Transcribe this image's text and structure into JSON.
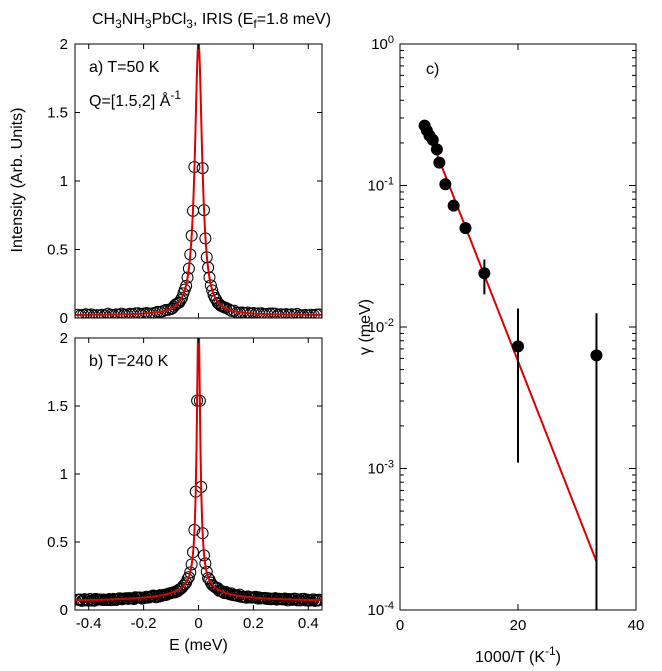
{
  "figure": {
    "title_main": "CH",
    "title_parts": [
      "CH",
      "3",
      "NH",
      "3",
      "PbCl",
      "3",
      ", IRIS (E",
      "f",
      "=1.8 meV)"
    ]
  },
  "chart_data": [
    {
      "id": "a",
      "type": "scatter",
      "panel_label": "a) T=50 K",
      "q_label_parts": [
        "Q=[1.5,2] Å",
        "-1"
      ],
      "xlim": [
        -0.45,
        0.45
      ],
      "ylim": [
        0,
        2
      ],
      "xticks": [],
      "yticks": [
        0,
        0.5,
        1,
        1.5,
        2
      ],
      "ytick_labels": [
        "0",
        "0.5",
        "1",
        "1.5",
        "2"
      ],
      "fit_color": "#dd0000",
      "marker_color": "#000000",
      "lorentz": {
        "amplitude": 1.99,
        "gamma": 0.016,
        "background": 0.02
      },
      "points_x": [
        -0.44,
        -0.43,
        -0.42,
        -0.41,
        -0.4,
        -0.39,
        -0.38,
        -0.37,
        -0.36,
        -0.35,
        -0.34,
        -0.33,
        -0.32,
        -0.31,
        -0.3,
        -0.29,
        -0.28,
        -0.27,
        -0.26,
        -0.25,
        -0.24,
        -0.23,
        -0.22,
        -0.21,
        -0.2,
        -0.19,
        -0.18,
        -0.17,
        -0.16,
        -0.15,
        -0.14,
        -0.13,
        -0.12,
        -0.11,
        -0.1,
        -0.095,
        -0.09,
        -0.085,
        -0.08,
        -0.075,
        -0.07,
        -0.065,
        -0.06,
        -0.055,
        -0.05,
        -0.045,
        -0.04,
        -0.035,
        -0.03,
        -0.025,
        -0.02,
        -0.015,
        -0.01,
        0.01,
        0.015,
        0.02,
        0.025,
        0.03,
        0.035,
        0.04,
        0.045,
        0.05,
        0.055,
        0.06,
        0.065,
        0.07,
        0.075,
        0.08,
        0.085,
        0.09,
        0.095,
        0.1,
        0.11,
        0.12,
        0.13,
        0.14,
        0.15,
        0.16,
        0.17,
        0.18,
        0.19,
        0.2,
        0.21,
        0.22,
        0.23,
        0.24,
        0.25,
        0.26,
        0.27,
        0.28,
        0.29,
        0.3,
        0.31,
        0.32,
        0.33,
        0.34,
        0.35,
        0.36,
        0.37,
        0.38,
        0.39,
        0.4,
        0.41,
        0.42,
        0.43,
        0.44
      ]
    },
    {
      "id": "b",
      "type": "scatter",
      "panel_label": "b) T=240 K",
      "xlabel": "E (meV)",
      "xlim": [
        -0.45,
        0.45
      ],
      "ylim": [
        0,
        2
      ],
      "xticks": [
        -0.4,
        -0.2,
        0,
        0.2,
        0.4
      ],
      "xtick_labels": [
        "-0.4",
        "-0.2",
        "0",
        "0.2",
        "0.4"
      ],
      "yticks": [
        0,
        0.5,
        1,
        1.5,
        2
      ],
      "ytick_labels": [
        "0",
        "0.5",
        "1",
        "1.5",
        "2"
      ],
      "fit_color": "#dd0000",
      "marker_color": "#000000",
      "lorentz": {
        "amplitude": 1.92,
        "gamma": 0.0075,
        "background": 0.0
      },
      "lorentz2": {
        "amplitude": 0.3,
        "gamma": 0.17
      },
      "points_x": [
        -0.44,
        -0.435,
        -0.43,
        -0.425,
        -0.42,
        -0.415,
        -0.41,
        -0.405,
        -0.4,
        -0.395,
        -0.39,
        -0.385,
        -0.38,
        -0.375,
        -0.37,
        -0.365,
        -0.36,
        -0.355,
        -0.35,
        -0.345,
        -0.34,
        -0.335,
        -0.33,
        -0.325,
        -0.32,
        -0.315,
        -0.31,
        -0.305,
        -0.3,
        -0.295,
        -0.29,
        -0.285,
        -0.28,
        -0.275,
        -0.27,
        -0.265,
        -0.26,
        -0.255,
        -0.25,
        -0.245,
        -0.24,
        -0.235,
        -0.23,
        -0.225,
        -0.22,
        -0.215,
        -0.21,
        -0.205,
        -0.2,
        -0.195,
        -0.19,
        -0.185,
        -0.18,
        -0.175,
        -0.17,
        -0.165,
        -0.16,
        -0.155,
        -0.15,
        -0.145,
        -0.14,
        -0.135,
        -0.13,
        -0.125,
        -0.12,
        -0.115,
        -0.11,
        -0.105,
        -0.1,
        -0.095,
        -0.09,
        -0.085,
        -0.08,
        -0.075,
        -0.07,
        -0.065,
        -0.06,
        -0.055,
        -0.05,
        -0.045,
        -0.04,
        -0.035,
        -0.03,
        -0.025,
        -0.02,
        -0.015,
        -0.01,
        -0.005,
        0.0,
        0.005,
        0.01,
        0.015,
        0.02,
        0.025,
        0.03,
        0.035,
        0.04,
        0.045,
        0.05,
        0.055,
        0.06,
        0.065,
        0.07,
        0.075,
        0.08,
        0.085,
        0.09,
        0.095,
        0.1,
        0.105,
        0.11,
        0.115,
        0.12,
        0.125,
        0.13,
        0.135,
        0.14,
        0.145,
        0.15,
        0.155,
        0.16,
        0.165,
        0.17,
        0.175,
        0.18,
        0.185,
        0.19,
        0.195,
        0.2,
        0.205,
        0.21,
        0.215,
        0.22,
        0.225,
        0.23,
        0.235,
        0.24,
        0.245,
        0.25,
        0.255,
        0.26,
        0.265,
        0.27,
        0.275,
        0.28,
        0.285,
        0.29,
        0.295,
        0.3,
        0.305,
        0.31,
        0.315,
        0.32,
        0.325,
        0.33,
        0.335,
        0.34,
        0.345,
        0.35,
        0.355,
        0.36,
        0.365,
        0.37,
        0.375,
        0.38,
        0.385,
        0.39,
        0.395,
        0.4,
        0.405,
        0.41,
        0.415,
        0.42,
        0.425,
        0.43,
        0.435,
        0.44
      ]
    },
    {
      "id": "c",
      "type": "scatter",
      "panel_label": "c)",
      "xlabel_parts": [
        "1000/T (K",
        "-1",
        ")"
      ],
      "ylabel": "γ (meV)",
      "xlim": [
        0,
        40
      ],
      "ylim_log10": [
        -4,
        0
      ],
      "yscale": "log",
      "xticks": [
        0,
        20,
        40
      ],
      "xtick_labels": [
        "0",
        "20",
        "40"
      ],
      "ytick_exponents": [
        -4,
        -3,
        -2,
        -1,
        0
      ],
      "ytick_base": "10",
      "fit_color": "#dd0000",
      "fit_line": {
        "x": [
          4.0,
          33.3
        ],
        "y": [
          0.29,
          0.00022
        ]
      },
      "points": [
        {
          "x": 4.17,
          "y": 0.265,
          "err_low": 0.0,
          "err_high": 0.0
        },
        {
          "x": 4.55,
          "y": 0.245,
          "err_low": 0.0,
          "err_high": 0.0
        },
        {
          "x": 5.0,
          "y": 0.225,
          "err_low": 0.0,
          "err_high": 0.0
        },
        {
          "x": 5.56,
          "y": 0.21,
          "err_low": 0.0,
          "err_high": 0.0
        },
        {
          "x": 6.25,
          "y": 0.18,
          "err_low": 0.0,
          "err_high": 0.0
        },
        {
          "x": 6.67,
          "y": 0.145,
          "err_low": 0.0,
          "err_high": 0.0
        },
        {
          "x": 7.69,
          "y": 0.102,
          "err_low": 0.0,
          "err_high": 0.0
        },
        {
          "x": 9.09,
          "y": 0.072,
          "err_low": 0.0,
          "err_high": 0.0
        },
        {
          "x": 11.1,
          "y": 0.05,
          "err_low": 0.0,
          "err_high": 0.0
        },
        {
          "x": 14.3,
          "y": 0.024,
          "err_low": 0.017,
          "err_high": 0.03
        },
        {
          "x": 20.0,
          "y": 0.0073,
          "err_low": 0.0011,
          "err_high": 0.0135
        },
        {
          "x": 33.3,
          "y": 0.0063,
          "err_low": 0.0001,
          "err_high": 0.0125
        }
      ]
    }
  ],
  "shared": {
    "ylabel": "Intensity (Arb. Units)"
  }
}
